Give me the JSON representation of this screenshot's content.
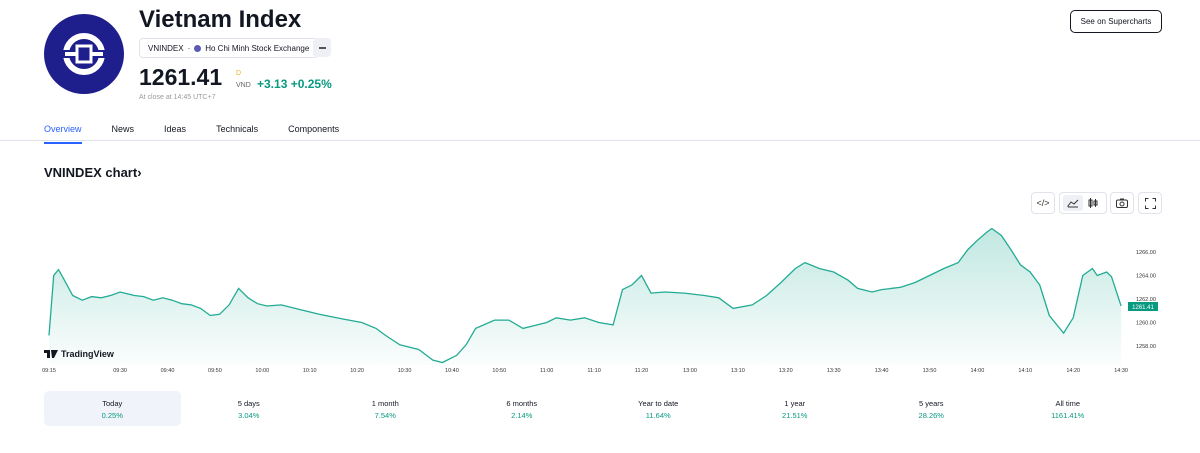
{
  "header": {
    "title": "Vietnam Index",
    "symbol": "VNINDEX",
    "separator": "·",
    "exchange": "Ho Chi Minh Stock Exchange",
    "price": "1261.41",
    "currency_symbol": "D",
    "currency": "VND",
    "change": "+3.13",
    "change_pct": "+0.25%",
    "close_note": "At close at 14:45 UTC+7",
    "supercharts_label": "See on Supercharts",
    "logo_icon": "vn-index-logo"
  },
  "tabs": [
    {
      "label": "Overview",
      "active": true
    },
    {
      "label": "News"
    },
    {
      "label": "Ideas"
    },
    {
      "label": "Technicals"
    },
    {
      "label": "Components"
    }
  ],
  "chart_section": {
    "title": "VNINDEX chart",
    "chevron": "›",
    "toolbar": [
      "embed-icon",
      "line-chart-icon",
      "candles-icon",
      "camera-icon",
      "fullscreen-icon"
    ],
    "watermark": "TradingView"
  },
  "colors": {
    "accent": "#2962ff",
    "up": "#089981",
    "line": "#22ab94"
  },
  "chart_data": {
    "type": "area",
    "x_ticks": [
      "09:15",
      "09:30",
      "09:40",
      "09:50",
      "10:00",
      "10:10",
      "10:20",
      "10:30",
      "10:40",
      "10:50",
      "11:00",
      "11:10",
      "11:20",
      "13:00",
      "13:10",
      "13:20",
      "13:30",
      "13:40",
      "13:50",
      "14:00",
      "14:10",
      "14:20",
      "14:30"
    ],
    "y_ticks": [
      "1258.00",
      "1260.00",
      "1262.00",
      "1264.00",
      "1266.00"
    ],
    "ylim": [
      1256.3,
      1270
    ],
    "last_label": "1261.41",
    "points": [
      [
        "09:15",
        1258.9
      ],
      [
        "09:16",
        1264.0
      ],
      [
        "09:17",
        1264.5
      ],
      [
        "09:18",
        1263.8
      ],
      [
        "09:20",
        1262.3
      ],
      [
        "09:22",
        1261.9
      ],
      [
        "09:24",
        1262.2
      ],
      [
        "09:26",
        1262.1
      ],
      [
        "09:28",
        1262.3
      ],
      [
        "09:30",
        1262.6
      ],
      [
        "09:33",
        1262.3
      ],
      [
        "09:35",
        1262.2
      ],
      [
        "09:37",
        1261.9
      ],
      [
        "09:39",
        1262.1
      ],
      [
        "09:41",
        1261.9
      ],
      [
        "09:43",
        1261.6
      ],
      [
        "09:45",
        1261.5
      ],
      [
        "09:47",
        1261.2
      ],
      [
        "09:49",
        1260.6
      ],
      [
        "09:51",
        1260.7
      ],
      [
        "09:53",
        1261.5
      ],
      [
        "09:55",
        1262.9
      ],
      [
        "09:57",
        1262.1
      ],
      [
        "09:59",
        1261.6
      ],
      [
        "10:01",
        1261.4
      ],
      [
        "10:04",
        1261.5
      ],
      [
        "10:08",
        1261.1
      ],
      [
        "10:12",
        1260.7
      ],
      [
        "10:17",
        1260.3
      ],
      [
        "10:21",
        1260.0
      ],
      [
        "10:24",
        1259.5
      ],
      [
        "10:26",
        1258.9
      ],
      [
        "10:29",
        1258.1
      ],
      [
        "10:33",
        1257.7
      ],
      [
        "10:36",
        1256.8
      ],
      [
        "10:38",
        1256.6
      ],
      [
        "10:41",
        1257.2
      ],
      [
        "10:43",
        1258.1
      ],
      [
        "10:45",
        1259.5
      ],
      [
        "10:49",
        1260.2
      ],
      [
        "10:52",
        1260.2
      ],
      [
        "10:55",
        1259.5
      ],
      [
        "10:58",
        1259.8
      ],
      [
        "11:00",
        1260.0
      ],
      [
        "11:02",
        1260.4
      ],
      [
        "11:05",
        1260.2
      ],
      [
        "11:08",
        1260.4
      ],
      [
        "11:11",
        1260.0
      ],
      [
        "11:14",
        1259.8
      ],
      [
        "11:16",
        1262.8
      ],
      [
        "11:18",
        1263.2
      ],
      [
        "11:20",
        1264.0
      ],
      [
        "11:22",
        1262.5
      ],
      [
        "11:25",
        1262.6
      ],
      [
        "11:29",
        1262.5
      ],
      [
        "13:03",
        1262.3
      ],
      [
        "13:06",
        1262.1
      ],
      [
        "13:09",
        1261.2
      ],
      [
        "13:13",
        1261.5
      ],
      [
        "13:16",
        1262.3
      ],
      [
        "13:19",
        1263.4
      ],
      [
        "13:22",
        1264.6
      ],
      [
        "13:24",
        1265.1
      ],
      [
        "13:27",
        1264.6
      ],
      [
        "13:30",
        1264.3
      ],
      [
        "13:33",
        1263.6
      ],
      [
        "13:35",
        1262.9
      ],
      [
        "13:38",
        1262.6
      ],
      [
        "13:40",
        1262.8
      ],
      [
        "13:44",
        1263.0
      ],
      [
        "13:47",
        1263.4
      ],
      [
        "13:50",
        1264.0
      ],
      [
        "13:53",
        1264.6
      ],
      [
        "13:56",
        1265.1
      ],
      [
        "13:58",
        1266.2
      ],
      [
        "14:00",
        1267.0
      ],
      [
        "14:02",
        1267.7
      ],
      [
        "14:03",
        1268.0
      ],
      [
        "14:05",
        1267.4
      ],
      [
        "14:07",
        1266.2
      ],
      [
        "14:09",
        1264.9
      ],
      [
        "14:11",
        1264.3
      ],
      [
        "14:13",
        1263.2
      ],
      [
        "14:15",
        1260.6
      ],
      [
        "14:18",
        1259.1
      ],
      [
        "14:20",
        1260.4
      ],
      [
        "14:22",
        1264.0
      ],
      [
        "14:24",
        1264.6
      ],
      [
        "14:25",
        1264.0
      ],
      [
        "14:27",
        1264.3
      ],
      [
        "14:28",
        1263.9
      ],
      [
        "14:30",
        1261.41
      ]
    ]
  },
  "periods": [
    {
      "label": "Today",
      "value": "0.25%",
      "selected": true
    },
    {
      "label": "5 days",
      "value": "3.04%"
    },
    {
      "label": "1 month",
      "value": "7.54%"
    },
    {
      "label": "6 months",
      "value": "2.14%"
    },
    {
      "label": "Year to date",
      "value": "11.64%"
    },
    {
      "label": "1 year",
      "value": "21.51%"
    },
    {
      "label": "5 years",
      "value": "28.26%"
    },
    {
      "label": "All time",
      "value": "1161.41%"
    }
  ]
}
